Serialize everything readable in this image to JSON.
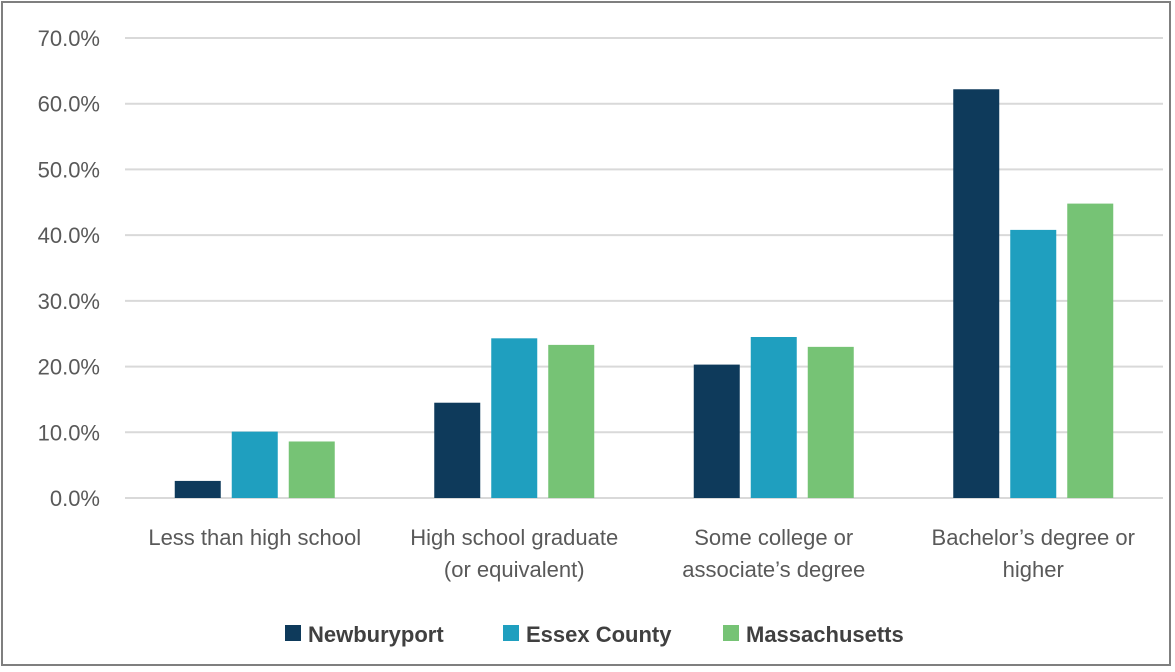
{
  "chart_data": {
    "type": "bar",
    "categories": [
      [
        "Less than high school"
      ],
      [
        "High school graduate",
        "(or equivalent)"
      ],
      [
        "Some college or",
        "associate’s degree"
      ],
      [
        "Bachelor’s degree or",
        "higher"
      ]
    ],
    "series": [
      {
        "name": "Newburyport",
        "color": "#0e3a5b",
        "values": [
          2.6,
          14.5,
          20.3,
          62.2
        ]
      },
      {
        "name": "Essex County",
        "color": "#1f9fbf",
        "values": [
          10.1,
          24.3,
          24.5,
          40.8
        ]
      },
      {
        "name": "Massachusetts",
        "color": "#76c375",
        "values": [
          8.6,
          23.3,
          23.0,
          44.8
        ]
      }
    ],
    "ylim": [
      0,
      70
    ],
    "yticks": [
      "0.0%",
      "10.0%",
      "20.0%",
      "30.0%",
      "40.0%",
      "50.0%",
      "60.0%",
      "70.0%"
    ],
    "ytick_values": [
      0,
      10,
      20,
      30,
      40,
      50,
      60,
      70
    ],
    "grid": true,
    "legend_position": "bottom"
  }
}
